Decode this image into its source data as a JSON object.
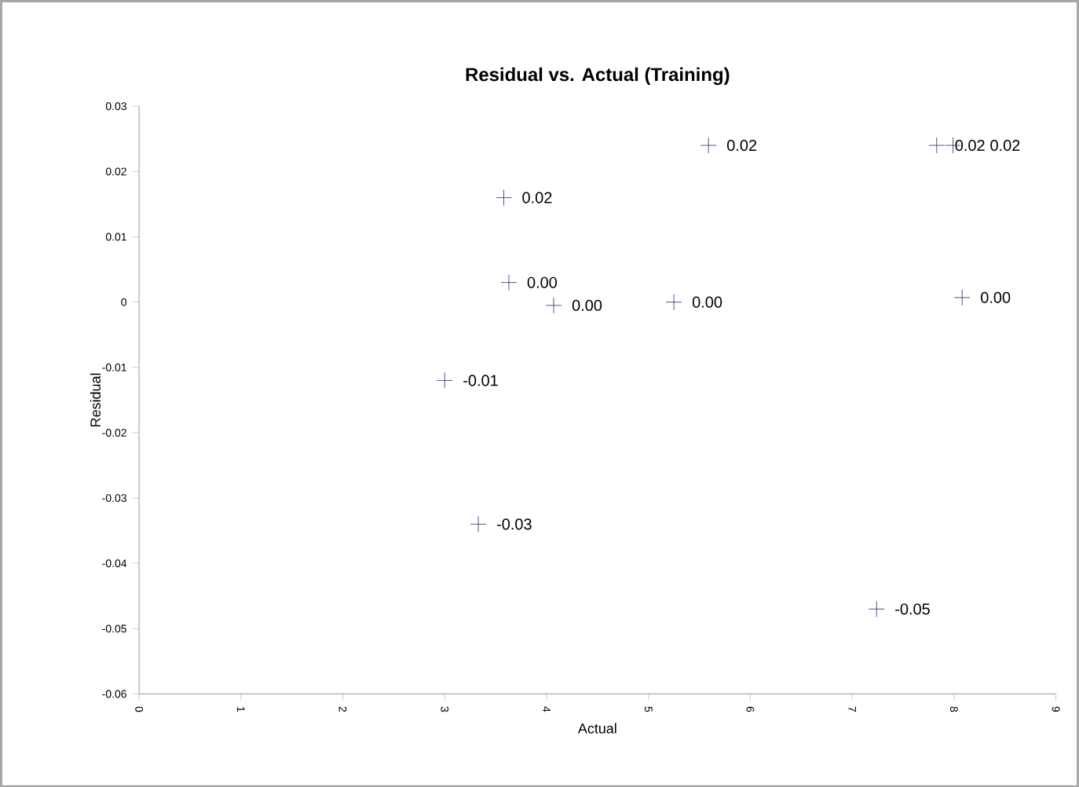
{
  "chart_data": {
    "type": "scatter",
    "title": "Residual vs. Actual (Training)",
    "xlabel": "Actual",
    "ylabel": "Residual",
    "x": [
      3.0,
      3.58,
      3.63,
      4.07,
      5.25,
      5.59,
      7.83,
      7.99,
      8.08,
      3.33,
      7.24
    ],
    "values": [
      -0.012,
      0.016,
      0.003,
      -0.0005,
      0.0,
      0.024,
      0.024,
      0.024,
      0.0007,
      -0.034,
      -0.047
    ],
    "value_labels": [
      "-0.01",
      "0.02",
      "0.00",
      "0.00",
      "0.00",
      "0.02",
      "0.02",
      "0.02",
      "0.00",
      "-0.03",
      "-0.05"
    ],
    "color": "#2a2a6a",
    "marker": "cross",
    "xlim": [
      0,
      9
    ],
    "xticks": [
      0,
      1,
      2,
      3,
      4,
      5,
      6,
      7,
      8,
      9
    ],
    "ylim": [
      -0.06,
      0.03
    ],
    "yticks": [
      -0.06,
      -0.05,
      -0.04,
      -0.03,
      -0.02,
      -0.01,
      0,
      0.01,
      0.02,
      0.03
    ]
  }
}
